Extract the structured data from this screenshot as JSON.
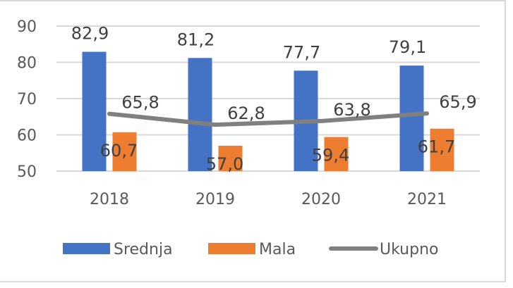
{
  "chart_data": {
    "type": "bar",
    "categories": [
      "2018",
      "2019",
      "2020",
      "2021"
    ],
    "series": [
      {
        "name": "Srednja",
        "kind": "bar",
        "color": "#4472c4",
        "values": [
          82.9,
          81.2,
          77.7,
          79.1
        ],
        "labels": [
          "82,9",
          "81,2",
          "77,7",
          "79,1"
        ]
      },
      {
        "name": "Mala",
        "kind": "bar",
        "color": "#ed7d31",
        "values": [
          60.7,
          57.0,
          59.4,
          61.7
        ],
        "labels": [
          "60,7",
          "57,0",
          "59,4",
          "61,7"
        ]
      },
      {
        "name": "Ukupno",
        "kind": "line",
        "color": "#808080",
        "values": [
          65.8,
          62.8,
          63.8,
          65.9
        ],
        "labels": [
          "65,8",
          "62,8",
          "63,8",
          "65,9"
        ]
      }
    ],
    "yticks": [
      "50",
      "60",
      "70",
      "80",
      "90"
    ],
    "ytick_values": [
      50,
      60,
      70,
      80,
      90
    ],
    "ylim": [
      50,
      90
    ],
    "grid": true,
    "title": "",
    "xlabel": "",
    "ylabel": "",
    "legend_position": "bottom"
  }
}
